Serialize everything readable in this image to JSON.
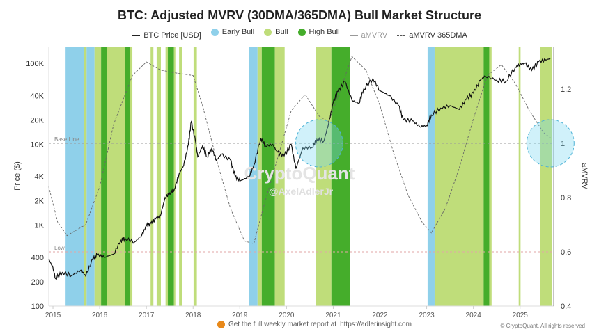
{
  "chart_data": {
    "type": "area",
    "title": "BTC: Adjusted MVRV (30DMA/365DMA) Bull Market Structure",
    "ylabel": "Price ($)",
    "y2label": "aMVRV",
    "y_scale": "log",
    "ylim": [
      100,
      160000
    ],
    "y2lim": [
      0.4,
      1.35
    ],
    "xlim": [
      2014.91,
      2025.72
    ],
    "x_ticks": [
      "2015",
      "2016",
      "2017",
      "2018",
      "2019",
      "2020",
      "2021",
      "2022",
      "2023",
      "2024",
      "2025"
    ],
    "y_ticks": [
      {
        "v": 100,
        "l": "100"
      },
      {
        "v": 200,
        "l": "200"
      },
      {
        "v": 400,
        "l": "400"
      },
      {
        "v": 1000,
        "l": "1K"
      },
      {
        "v": 2000,
        "l": "2K"
      },
      {
        "v": 4000,
        "l": "4K"
      },
      {
        "v": 10000,
        "l": "10K"
      },
      {
        "v": 20000,
        "l": "20K"
      },
      {
        "v": 40000,
        "l": "40K"
      },
      {
        "v": 100000,
        "l": "100K"
      }
    ],
    "y2_ticks": [
      "0.4",
      "0.6",
      "0.8",
      "1",
      "1.2"
    ],
    "legend": [
      {
        "label": "BTC Price [USD]",
        "kind": "line",
        "color": "#222222"
      },
      {
        "label": "Early Bull",
        "kind": "dot",
        "color": "#8fd0ea"
      },
      {
        "label": "Bull",
        "kind": "dot",
        "color": "#bfdd7a"
      },
      {
        "label": "High Bull",
        "kind": "dot",
        "color": "#45ad2b"
      },
      {
        "label": "aMVRV",
        "kind": "line",
        "color": "#999999",
        "hidden": true
      },
      {
        "label": "aMVRV 365DMA",
        "kind": "dashed",
        "color": "#555555"
      }
    ],
    "legend_placement": "top",
    "colors": {
      "early": "#8fd0ea",
      "bull": "#bfdd7a",
      "high": "#45ad2b",
      "price": "#111111",
      "dma": "#666666",
      "ref": "#e2a6a6"
    },
    "reference_lines": [
      {
        "label": "Base Line",
        "value": 1
      },
      {
        "label": "Low",
        "value": 0.6
      }
    ],
    "bands": [
      [
        "early",
        2015.27,
        2015.66
      ],
      [
        "bull",
        2015.66,
        2015.72
      ],
      [
        "early",
        2015.72,
        2015.89
      ],
      [
        "bull",
        2015.89,
        2016.03
      ],
      [
        "high",
        2016.03,
        2016.15
      ],
      [
        "bull",
        2016.15,
        2016.55
      ],
      [
        "high",
        2016.55,
        2016.65
      ],
      [
        "bull",
        2016.65,
        2016.7
      ],
      [
        "bull",
        2017.09,
        2017.15
      ],
      [
        "bull",
        2017.22,
        2017.31
      ],
      [
        "bull",
        2017.41,
        2017.46
      ],
      [
        "high",
        2017.46,
        2017.59
      ],
      [
        "bull",
        2017.59,
        2017.62
      ],
      [
        "bull",
        2017.7,
        2017.77
      ],
      [
        "bull",
        2018.01,
        2018.08
      ],
      [
        "early",
        2019.19,
        2019.38
      ],
      [
        "bull",
        2019.38,
        2019.47
      ],
      [
        "high",
        2019.47,
        2019.75
      ],
      [
        "bull",
        2019.75,
        2019.96
      ],
      [
        "bull",
        2020.63,
        2020.96
      ],
      [
        "high",
        2020.96,
        2021.36
      ],
      [
        "early",
        2023.02,
        2023.17
      ],
      [
        "bull",
        2023.17,
        2024.22
      ],
      [
        "high",
        2024.22,
        2024.34
      ],
      [
        "bull",
        2024.34,
        2024.39
      ],
      [
        "bull",
        2024.97,
        2025.01
      ],
      [
        "bull",
        2025.43,
        2025.69
      ]
    ],
    "price": [
      [
        2014.91,
        380
      ],
      [
        2015.0,
        300
      ],
      [
        2015.05,
        220
      ],
      [
        2015.2,
        260
      ],
      [
        2015.4,
        240
      ],
      [
        2015.6,
        280
      ],
      [
        2015.7,
        235
      ],
      [
        2015.85,
        380
      ],
      [
        2015.95,
        430
      ],
      [
        2016.1,
        400
      ],
      [
        2016.3,
        440
      ],
      [
        2016.45,
        650
      ],
      [
        2016.55,
        680
      ],
      [
        2016.75,
        620
      ],
      [
        2016.9,
        750
      ],
      [
        2017.0,
        980
      ],
      [
        2017.1,
        1050
      ],
      [
        2017.2,
        1200
      ],
      [
        2017.3,
        1300
      ],
      [
        2017.4,
        2200
      ],
      [
        2017.5,
        2500
      ],
      [
        2017.6,
        2800
      ],
      [
        2017.7,
        4300
      ],
      [
        2017.8,
        5500
      ],
      [
        2017.9,
        10000
      ],
      [
        2017.96,
        19000
      ],
      [
        2018.05,
        11000
      ],
      [
        2018.1,
        7000
      ],
      [
        2018.2,
        9500
      ],
      [
        2018.3,
        7000
      ],
      [
        2018.4,
        9000
      ],
      [
        2018.5,
        6300
      ],
      [
        2018.6,
        7500
      ],
      [
        2018.8,
        6400
      ],
      [
        2018.9,
        4000
      ],
      [
        2019.0,
        3500
      ],
      [
        2019.2,
        4000
      ],
      [
        2019.3,
        5500
      ],
      [
        2019.45,
        12000
      ],
      [
        2019.55,
        9500
      ],
      [
        2019.7,
        10000
      ],
      [
        2019.8,
        8000
      ],
      [
        2019.95,
        7200
      ],
      [
        2020.1,
        10000
      ],
      [
        2020.2,
        5000
      ],
      [
        2020.35,
        9000
      ],
      [
        2020.55,
        9200
      ],
      [
        2020.65,
        11500
      ],
      [
        2020.8,
        11000
      ],
      [
        2020.9,
        18000
      ],
      [
        2021.0,
        33000
      ],
      [
        2021.1,
        45000
      ],
      [
        2021.25,
        60000
      ],
      [
        2021.4,
        35000
      ],
      [
        2021.55,
        32000
      ],
      [
        2021.65,
        48000
      ],
      [
        2021.85,
        65000
      ],
      [
        2022.0,
        46000
      ],
      [
        2022.2,
        40000
      ],
      [
        2022.4,
        30000
      ],
      [
        2022.5,
        20000
      ],
      [
        2022.7,
        19500
      ],
      [
        2022.85,
        16500
      ],
      [
        2023.0,
        17000
      ],
      [
        2023.1,
        23000
      ],
      [
        2023.3,
        28000
      ],
      [
        2023.5,
        30000
      ],
      [
        2023.7,
        27000
      ],
      [
        2023.85,
        36000
      ],
      [
        2024.0,
        43000
      ],
      [
        2024.15,
        62000
      ],
      [
        2024.25,
        70000
      ],
      [
        2024.5,
        62000
      ],
      [
        2024.7,
        60000
      ],
      [
        2024.9,
        90000
      ],
      [
        2025.0,
        97000
      ],
      [
        2025.1,
        100000
      ],
      [
        2025.25,
        82000
      ],
      [
        2025.4,
        105000
      ],
      [
        2025.55,
        110000
      ],
      [
        2025.65,
        115000
      ]
    ],
    "amvrv_365dma": [
      [
        2014.91,
        0.84
      ],
      [
        2015.1,
        0.71
      ],
      [
        2015.3,
        0.66
      ],
      [
        2015.7,
        0.7
      ],
      [
        2016.0,
        0.84
      ],
      [
        2016.3,
        1.07
      ],
      [
        2016.7,
        1.25
      ],
      [
        2017.0,
        1.3
      ],
      [
        2017.3,
        1.27
      ],
      [
        2017.6,
        1.26
      ],
      [
        2018.0,
        1.25
      ],
      [
        2018.2,
        1.14
      ],
      [
        2018.5,
        0.94
      ],
      [
        2018.8,
        0.76
      ],
      [
        2019.1,
        0.64
      ],
      [
        2019.3,
        0.63
      ],
      [
        2019.5,
        0.76
      ],
      [
        2019.8,
        0.94
      ],
      [
        2020.1,
        1.12
      ],
      [
        2020.4,
        1.18
      ],
      [
        2020.7,
        1.1
      ],
      [
        2020.9,
        1.08
      ],
      [
        2021.1,
        1.17
      ],
      [
        2021.4,
        1.32
      ],
      [
        2021.7,
        1.27
      ],
      [
        2022.0,
        1.14
      ],
      [
        2022.3,
        0.96
      ],
      [
        2022.6,
        0.81
      ],
      [
        2022.9,
        0.71
      ],
      [
        2023.1,
        0.67
      ],
      [
        2023.4,
        0.76
      ],
      [
        2023.7,
        0.91
      ],
      [
        2024.0,
        1.09
      ],
      [
        2024.3,
        1.25
      ],
      [
        2024.6,
        1.29
      ],
      [
        2024.9,
        1.22
      ],
      [
        2025.2,
        1.12
      ],
      [
        2025.5,
        1.04
      ],
      [
        2025.65,
        1.02
      ]
    ],
    "highlights": [
      {
        "x": 2020.7,
        "y2": 1.0
      },
      {
        "x": 2025.65,
        "y2": 1.0
      }
    ],
    "watermark": [
      "CryptoQuant",
      "@AxelAdlerJr"
    ]
  },
  "footer": {
    "text": "Get the full weekly market report at",
    "link": "https://adlerinsight.com",
    "copyright": "© CryptoQuant. All rights reserved"
  }
}
